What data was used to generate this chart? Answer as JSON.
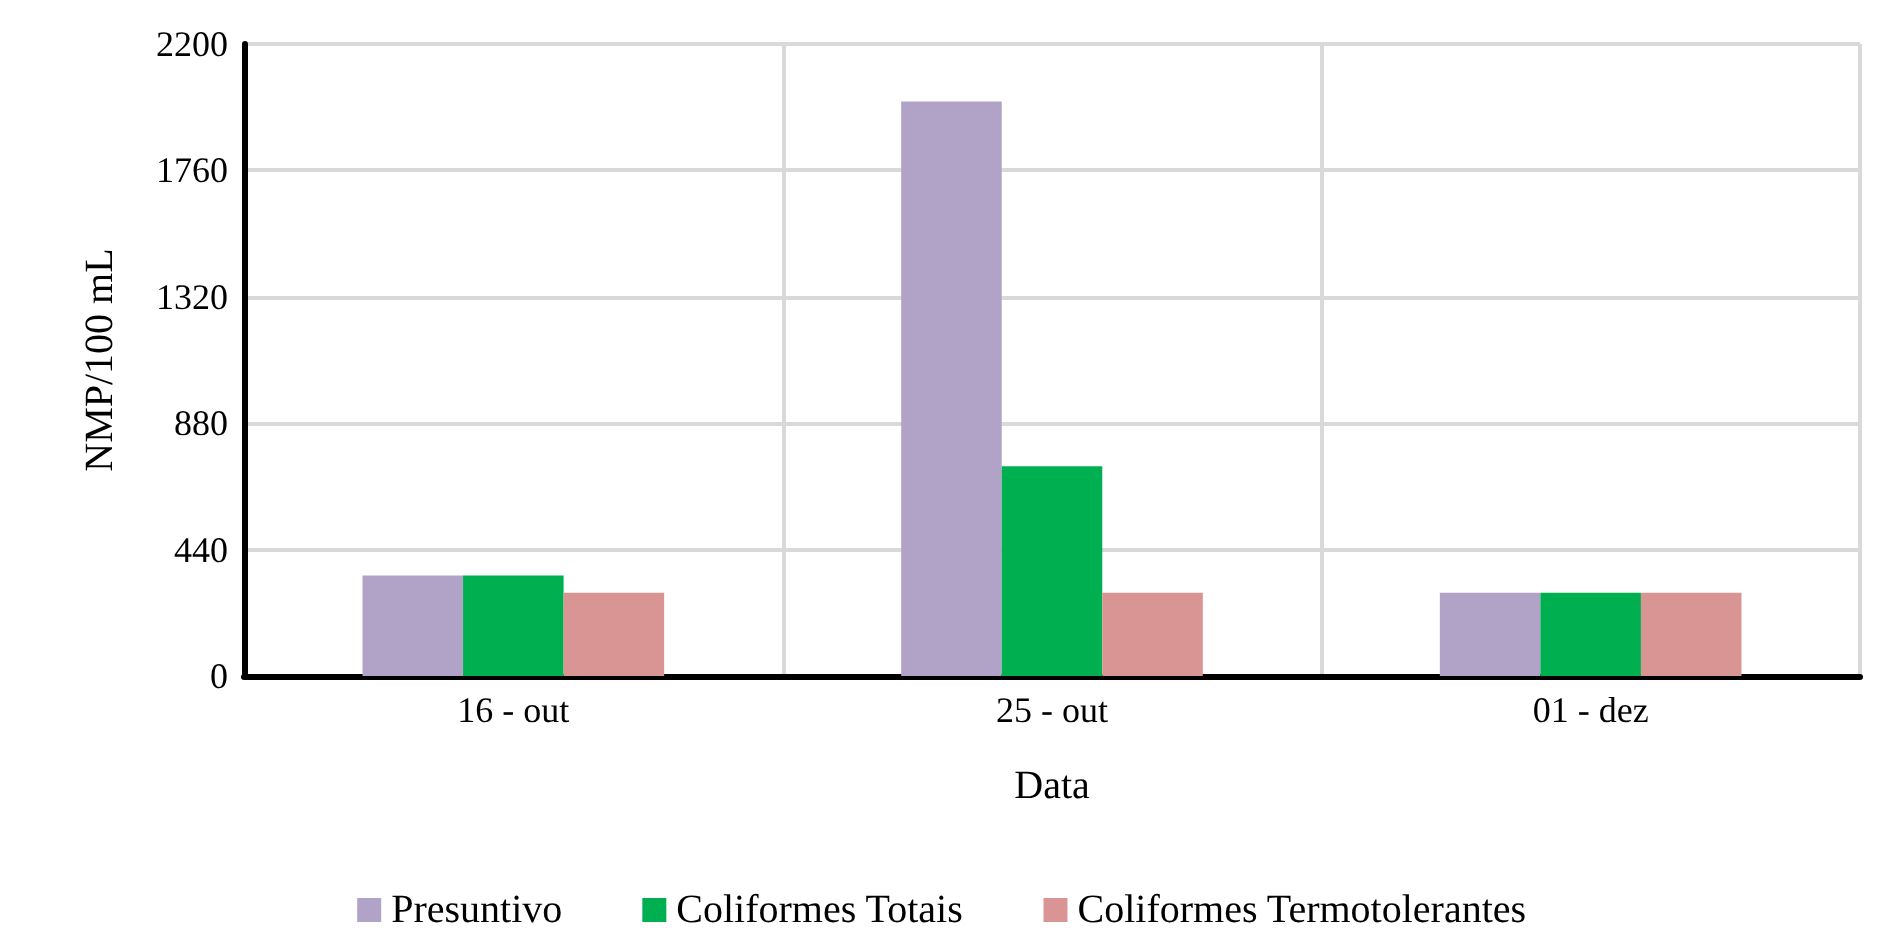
{
  "chart_data": {
    "type": "bar",
    "xlabel": "Data",
    "ylabel": "NMP/100 mL",
    "categories": [
      "16 - out",
      "25 - out",
      "01 - dez"
    ],
    "series": [
      {
        "name": "Presuntivo",
        "color": "#b1a2c7",
        "values": [
          350,
          2000,
          290
        ]
      },
      {
        "name": "Coliformes Totais",
        "color": "#00b050",
        "values": [
          350,
          730,
          290
        ]
      },
      {
        "name": "Coliformes Termotolerantes",
        "color": "#d99594",
        "values": [
          290,
          290,
          290
        ]
      }
    ],
    "ylim": [
      0,
      2200
    ],
    "yticks": [
      0,
      440,
      880,
      1320,
      1760,
      2200
    ],
    "grid": true,
    "legend": "bottom"
  }
}
